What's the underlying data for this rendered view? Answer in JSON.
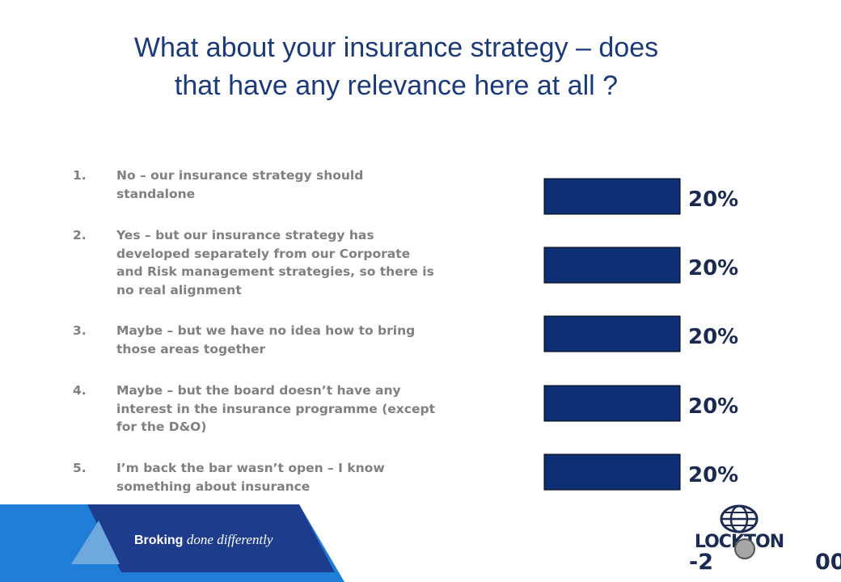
{
  "slide": {
    "title_line1": "What about your insurance strategy – does",
    "title_line2": "that have any relevance here at all ?"
  },
  "options": [
    {
      "num": "1.",
      "text": "No – our insurance strategy should standalone"
    },
    {
      "num": "2.",
      "text": "Yes – but our insurance strategy has developed separately from our Corporate and Risk management strategies, so there is no real alignment"
    },
    {
      "num": "3.",
      "text": "Maybe – but we have no idea how to bring those areas together"
    },
    {
      "num": "4.",
      "text": "Maybe – but the board doesn’t have any interest in the insurance programme (except for the D&O)"
    },
    {
      "num": "5.",
      "text": "I’m back the bar wasn’t open – I know something about insurance"
    }
  ],
  "chart_data": {
    "type": "bar",
    "orientation": "horizontal",
    "categories": [
      "1.",
      "2.",
      "3.",
      "4.",
      "5."
    ],
    "values": [
      20,
      20,
      20,
      20,
      20
    ],
    "labels": [
      "20%",
      "20%",
      "20%",
      "20%",
      "20%"
    ],
    "unit": "%",
    "xlim": [
      0,
      100
    ],
    "grid": false,
    "bar_color": "#0d2f73"
  },
  "footer": {
    "tagline_bold": "Broking",
    "tagline_italic": "done differently",
    "logo_text": "LOCKTON",
    "page_left": "-2",
    "page_right": "00"
  },
  "colors": {
    "title": "#1b3a7a",
    "option_text": "#808080",
    "footer_blue": "#1d3d8c",
    "footer_light": "#1f7ed8"
  }
}
